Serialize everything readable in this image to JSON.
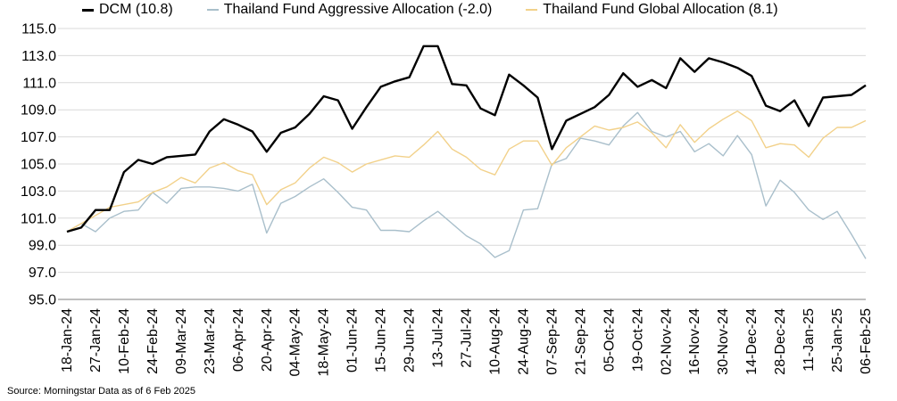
{
  "legend": [
    {
      "label": "DCM (10.8)",
      "color": "#000000"
    },
    {
      "label": "Thailand Fund Aggressive Allocation (-2.0)",
      "color": "#a9bfcb"
    },
    {
      "label": "Thailand Fund Global Allocation (8.1)",
      "color": "#f2d18a"
    }
  ],
  "source": "Source: Morningstar Data as of 6 Feb 2025",
  "chart_data": {
    "type": "line",
    "title": "",
    "xlabel": "",
    "ylabel": "",
    "ylim": [
      95,
      115
    ],
    "yticks": [
      "95.0",
      "97.0",
      "99.0",
      "101.0",
      "103.0",
      "105.0",
      "107.0",
      "109.0",
      "111.0",
      "113.0",
      "115.0"
    ],
    "grid": true,
    "legend_position": "top",
    "x": [
      "18-Jan-24",
      "23-Jan-24",
      "27-Jan-24",
      "03-Feb-24",
      "10-Feb-24",
      "17-Feb-24",
      "24-Feb-24",
      "02-Mar-24",
      "09-Mar-24",
      "16-Mar-24",
      "23-Mar-24",
      "30-Mar-24",
      "06-Apr-24",
      "13-Apr-24",
      "20-Apr-24",
      "27-Apr-24",
      "04-May-24",
      "11-May-24",
      "18-May-24",
      "25-May-24",
      "01-Jun-24",
      "08-Jun-24",
      "15-Jun-24",
      "22-Jun-24",
      "29-Jun-24",
      "06-Jul-24",
      "13-Jul-24",
      "20-Jul-24",
      "27-Jul-24",
      "03-Aug-24",
      "10-Aug-24",
      "17-Aug-24",
      "24-Aug-24",
      "31-Aug-24",
      "07-Sep-24",
      "14-Sep-24",
      "21-Sep-24",
      "28-Sep-24",
      "05-Oct-24",
      "12-Oct-24",
      "19-Oct-24",
      "26-Oct-24",
      "02-Nov-24",
      "09-Nov-24",
      "16-Nov-24",
      "23-Nov-24",
      "30-Nov-24",
      "07-Dec-24",
      "14-Dec-24",
      "21-Dec-24",
      "28-Dec-24",
      "04-Jan-25",
      "11-Jan-25",
      "18-Jan-25",
      "25-Jan-25",
      "01-Feb-25",
      "06-Feb-25"
    ],
    "xtick_labels": [
      "18-Jan-24",
      "27-Jan-24",
      "10-Feb-24",
      "24-Feb-24",
      "09-Mar-24",
      "23-Mar-24",
      "06-Apr-24",
      "20-Apr-24",
      "04-May-24",
      "18-May-24",
      "01-Jun-24",
      "15-Jun-24",
      "29-Jun-24",
      "13-Jul-24",
      "27-Jul-24",
      "10-Aug-24",
      "24-Aug-24",
      "07-Sep-24",
      "21-Sep-24",
      "05-Oct-24",
      "19-Oct-24",
      "02-Nov-24",
      "16-Nov-24",
      "30-Nov-24",
      "14-Dec-24",
      "28-Dec-24",
      "11-Jan-25",
      "25-Jan-25",
      "06-Feb-25"
    ],
    "series": [
      {
        "name": "DCM (10.8)",
        "color": "#000000",
        "width": 2.4,
        "values": [
          100.0,
          100.3,
          101.6,
          101.6,
          104.4,
          105.3,
          105.0,
          105.5,
          105.6,
          105.7,
          107.4,
          108.3,
          107.9,
          107.4,
          105.9,
          107.3,
          107.7,
          108.7,
          110.0,
          109.7,
          107.6,
          109.2,
          110.7,
          111.1,
          111.4,
          113.7,
          113.7,
          110.9,
          110.8,
          109.1,
          108.6,
          111.6,
          110.8,
          109.9,
          106.1,
          108.2,
          108.7,
          109.2,
          110.1,
          111.7,
          110.7,
          111.2,
          110.6,
          112.8,
          111.8,
          112.8,
          112.5,
          112.1,
          111.5,
          109.3,
          108.9,
          109.7,
          107.8,
          109.9,
          110.0,
          110.1,
          110.8
        ]
      },
      {
        "name": "Thailand Fund Aggressive Allocation (-2.0)",
        "color": "#a9bfcb",
        "width": 1.4,
        "values": [
          100.0,
          100.6,
          100.0,
          101.0,
          101.5,
          101.6,
          102.9,
          102.1,
          103.2,
          103.3,
          103.3,
          103.2,
          103.0,
          103.5,
          99.9,
          102.1,
          102.6,
          103.3,
          103.9,
          102.9,
          101.8,
          101.6,
          100.1,
          100.1,
          100.0,
          100.8,
          101.5,
          100.6,
          99.7,
          99.1,
          98.1,
          98.6,
          101.6,
          101.7,
          105.0,
          105.4,
          106.9,
          106.7,
          106.4,
          107.8,
          108.8,
          107.4,
          107.0,
          107.4,
          105.9,
          106.5,
          105.6,
          107.1,
          105.7,
          101.9,
          103.8,
          102.9,
          101.6,
          100.9,
          101.5,
          99.8,
          98.0
        ]
      },
      {
        "name": "Thailand Fund Global Allocation (8.1)",
        "color": "#f2d18a",
        "width": 1.4,
        "values": [
          100.0,
          100.6,
          101.2,
          101.8,
          102.0,
          102.2,
          102.9,
          103.3,
          104.0,
          103.6,
          104.7,
          105.1,
          104.5,
          104.2,
          102.0,
          103.1,
          103.6,
          104.7,
          105.5,
          105.1,
          104.4,
          105.0,
          105.3,
          105.6,
          105.5,
          106.4,
          107.4,
          106.1,
          105.5,
          104.6,
          104.2,
          106.1,
          106.7,
          106.7,
          104.9,
          106.2,
          107.0,
          107.8,
          107.5,
          107.7,
          108.1,
          107.3,
          106.2,
          107.9,
          106.6,
          107.6,
          108.3,
          108.9,
          108.2,
          106.2,
          106.5,
          106.4,
          105.5,
          106.9,
          107.7,
          107.7,
          108.2
        ]
      }
    ]
  }
}
